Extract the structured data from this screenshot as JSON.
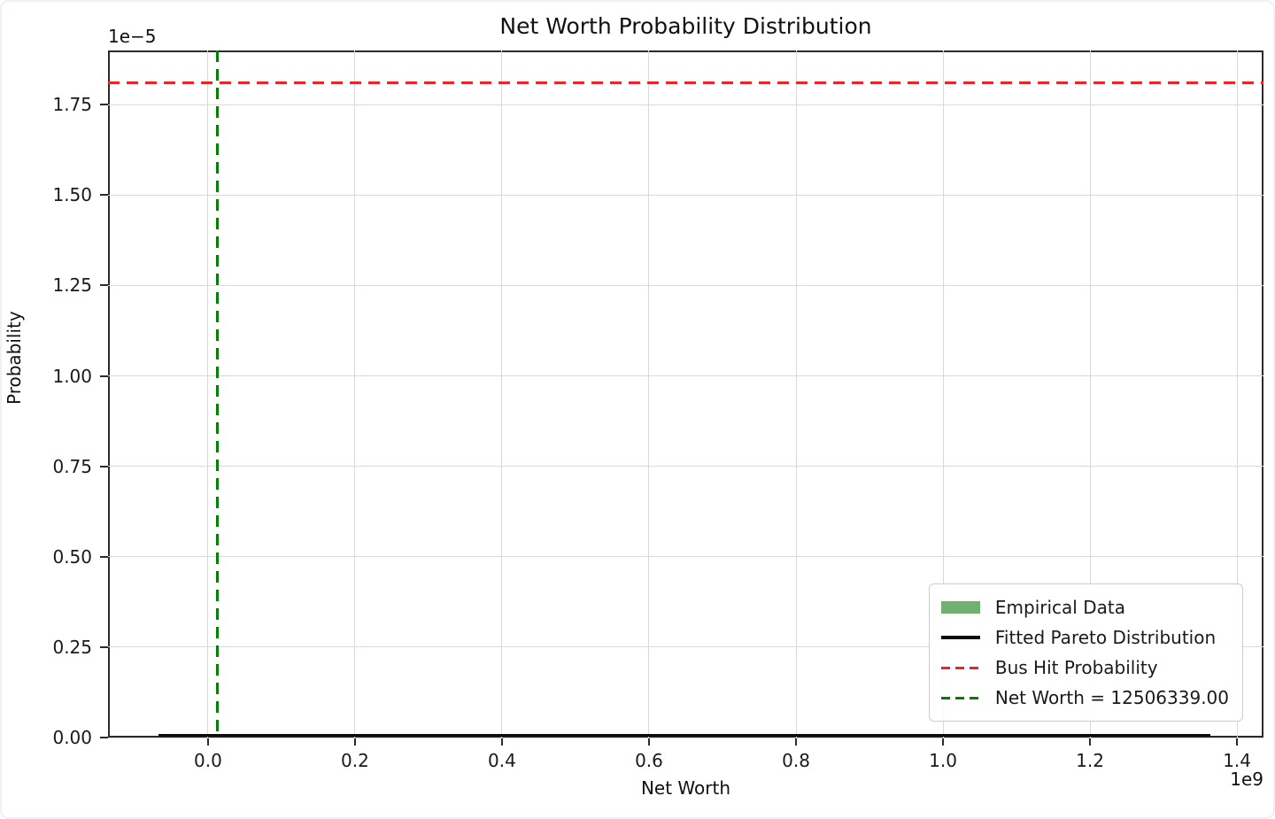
{
  "figure": {
    "background": "#ffffff",
    "frame_border_color": "#edf1f6"
  },
  "chart_data": {
    "type": "line",
    "title": "Net Worth Probability Distribution",
    "xlabel": "Net Worth",
    "ylabel": "Probability",
    "x_offset_label": "1e9",
    "y_offset_label": "1e−5",
    "xlim": [
      -136000000,
      1436000000
    ],
    "ylim": [
      0,
      1.9e-05
    ],
    "xtick_values": [
      0,
      200000000,
      400000000,
      600000000,
      800000000,
      1000000000,
      1200000000,
      1400000000
    ],
    "xtick_labels": [
      "0.0",
      "0.2",
      "0.4",
      "0.6",
      "0.8",
      "1.0",
      "1.2",
      "1.4"
    ],
    "ytick_values": [
      0,
      2.5e-06,
      5e-06,
      7.5e-06,
      1e-05,
      1.25e-05,
      1.5e-05,
      1.75e-05
    ],
    "ytick_labels": [
      "0.00",
      "0.25",
      "0.50",
      "0.75",
      "1.00",
      "1.25",
      "1.50",
      "1.75"
    ],
    "grid": true,
    "grid_color": "#d9d9d9",
    "legend_position": "lower right",
    "series": [
      {
        "name": "Empirical Data",
        "kind": "histogram",
        "legend_handle": "patch",
        "color": "#72b072",
        "max_visible_height": 0
      },
      {
        "name": "Fitted Pareto Distribution",
        "kind": "line",
        "legend_handle": "solid",
        "color": "#0d0d0d",
        "x_start": -67500000,
        "x_end": 1364000000,
        "y": 0
      },
      {
        "name": "Bus Hit Probability",
        "kind": "hline",
        "legend_handle": "dashed",
        "color": "#e8262a",
        "y": 1.81e-05
      },
      {
        "name": "Net Worth = 12506339.00",
        "kind": "vline",
        "legend_handle": "dashed",
        "color": "#008000",
        "x": 12506339
      }
    ]
  }
}
